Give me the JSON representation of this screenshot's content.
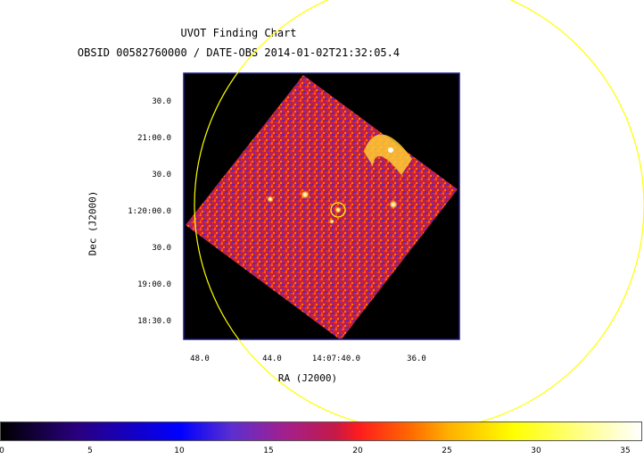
{
  "title": "UVOT Finding Chart",
  "subtitle": "OBSID 00582760000 / DATE-OBS 2014-01-02T21:32:05.4",
  "axes": {
    "xlabel": "RA (J2000)",
    "ylabel": "Dec (J2000)",
    "x_ticks": [
      "48.0",
      "44.0",
      "14:07:40.0",
      "36.0"
    ],
    "y_ticks": [
      "30.0",
      "21:00.0",
      "30.0",
      "1:20:00.0",
      "30.0",
      "19:00.0",
      "18:30.0"
    ]
  },
  "colorbar": {
    "ticks": [
      "0",
      "5",
      "10",
      "15",
      "20",
      "25",
      "30",
      "35"
    ],
    "range": [
      0,
      36
    ]
  },
  "colors": {
    "frame": "#1a1a8c",
    "circle": "#ffff00",
    "background": "#000000"
  }
}
